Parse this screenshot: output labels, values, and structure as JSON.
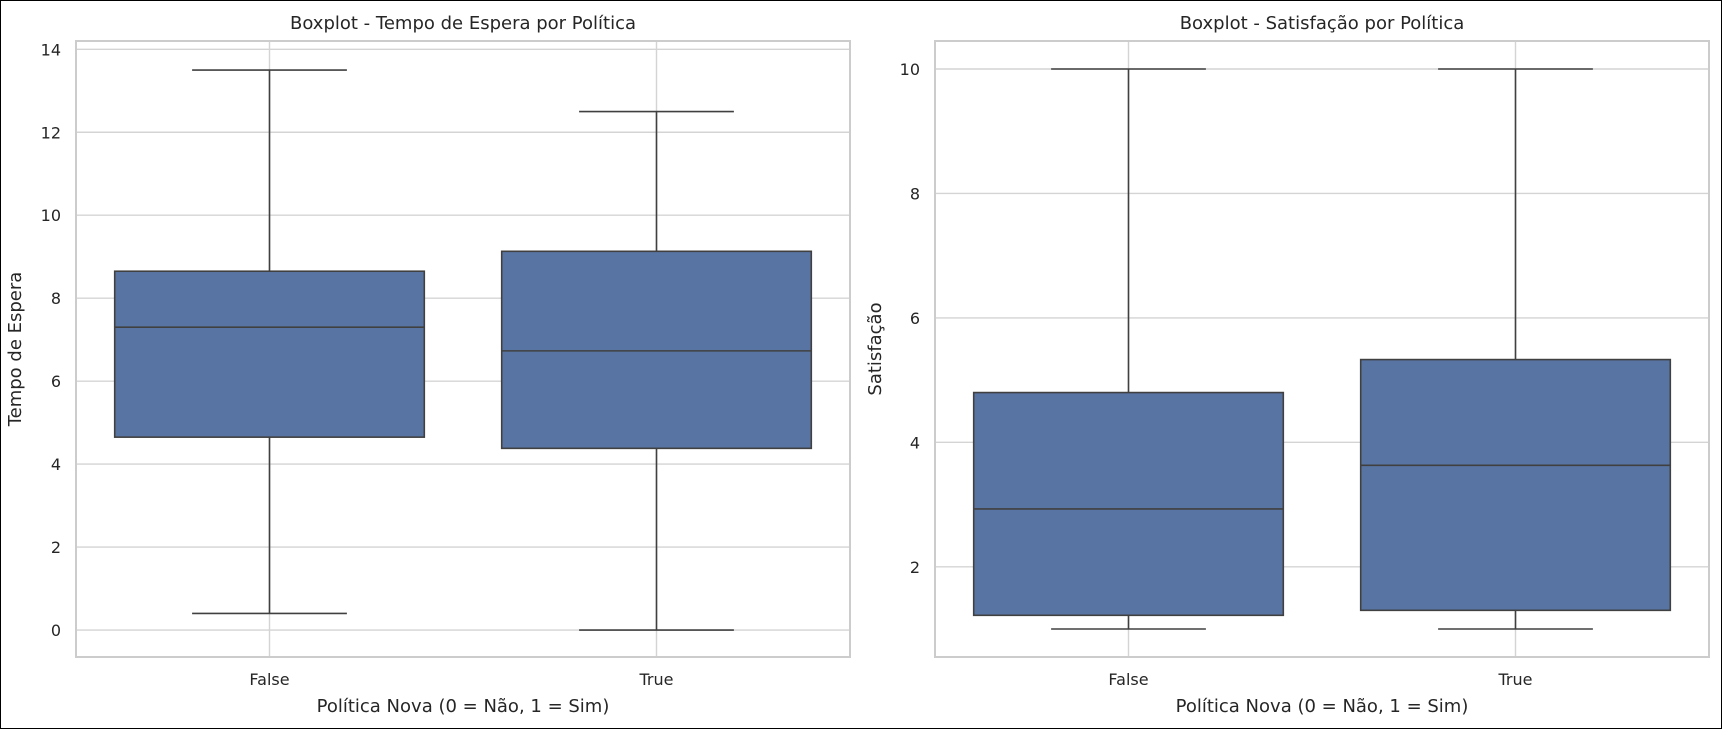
{
  "chart_data": [
    {
      "type": "box",
      "title": "Boxplot - Tempo de Espera por Política",
      "xlabel": "Política Nova (0 = Não, 1 = Sim)",
      "ylabel": "Tempo de Espera",
      "categories": [
        "False",
        "True"
      ],
      "ylim": [
        -0.65,
        14.2
      ],
      "yticks": [
        0,
        2,
        4,
        6,
        8,
        10,
        12,
        14
      ],
      "grid": true,
      "color": "#5874a3",
      "boxes": [
        {
          "category": "False",
          "whisker_low": 0.4,
          "q1": 4.65,
          "median": 7.3,
          "q3": 8.65,
          "whisker_high": 13.5
        },
        {
          "category": "True",
          "whisker_low": 0.0,
          "q1": 4.38,
          "median": 6.73,
          "q3": 9.13,
          "whisker_high": 12.5
        }
      ]
    },
    {
      "type": "box",
      "title": "Boxplot - Satisfação por Política",
      "xlabel": "Política Nova (0 = Não, 1 = Sim)",
      "ylabel": "Satisfação",
      "categories": [
        "False",
        "True"
      ],
      "ylim": [
        0.55,
        10.45
      ],
      "yticks": [
        2,
        4,
        6,
        8,
        10
      ],
      "grid": true,
      "color": "#5874a3",
      "boxes": [
        {
          "category": "False",
          "whisker_low": 1.0,
          "q1": 1.22,
          "median": 2.93,
          "q3": 4.8,
          "whisker_high": 10.0
        },
        {
          "category": "True",
          "whisker_low": 1.0,
          "q1": 1.3,
          "median": 3.63,
          "q3": 5.33,
          "whisker_high": 10.0
        }
      ]
    }
  ]
}
